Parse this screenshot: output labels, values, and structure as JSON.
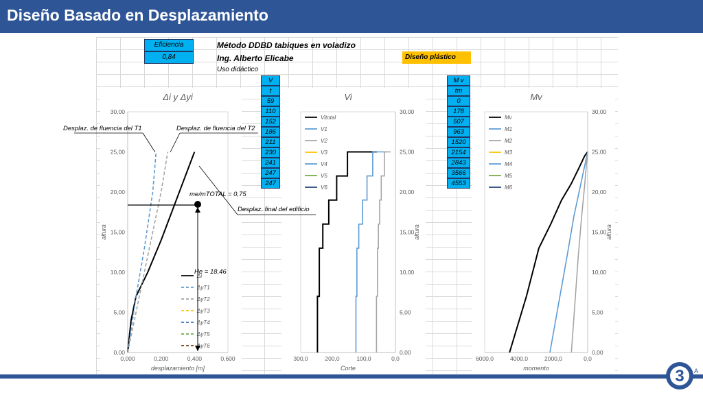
{
  "header": {
    "title": "Diseño Basado en Desplazamiento"
  },
  "sheet": {
    "eficiencia_label": "Eficiencia",
    "eficiencia_value": "0,84",
    "title": "Método DDBD tabiques en voladizo",
    "author": "Ing. Alberto Elicabe",
    "note": "Uso didáctico",
    "design_label": "Diseño plástico",
    "v_table": {
      "header": "V ltotal",
      "unit": "t",
      "values": [
        "59",
        "110",
        "152",
        "186",
        "211",
        "230",
        "241",
        "247",
        "247"
      ]
    },
    "m_table": {
      "header": "M v",
      "unit": "tm",
      "values": [
        "0",
        "178",
        "507",
        "963",
        "1520",
        "2154",
        "2843",
        "3566",
        "4553"
      ]
    }
  },
  "annotations": {
    "fluencia_t1": "Desplaz. de fluencia del T1",
    "fluencia_t2": "Desplaz. de fluencia del T2",
    "me_ratio": "me/mTOTAL = 0,75",
    "final": "Desplaz. final del edificio",
    "he": "He = 18,46"
  },
  "colors": {
    "header": "#2e5596",
    "accent_blue": "#00b0f0",
    "accent_orange": "#ffc000",
    "s1": "#000000",
    "s2": "#5b9bd5",
    "s3": "#a5a5a5",
    "s4": "#ffc000",
    "s5": "#4472c4",
    "s6": "#70ad47",
    "s7": "#264478"
  },
  "chart_data": [
    {
      "type": "line",
      "title": "Δi y Δyi",
      "xlabel": "desplazamiento [m]",
      "ylabel": "altura",
      "xlim": [
        0,
        0.6
      ],
      "ylim": [
        0,
        30
      ],
      "xticks": [
        "0,000",
        "0,200",
        "0,400",
        "0,600"
      ],
      "yticks": [
        "0,00",
        "5,00",
        "10,00",
        "15,00",
        "20,00",
        "25,00",
        "30,00"
      ],
      "legend": "bottom-right",
      "series": [
        {
          "name": "Δi",
          "style": "solid",
          "color": "#000000",
          "points": [
            [
              0,
              0
            ],
            [
              0.02,
              4
            ],
            [
              0.05,
              7
            ],
            [
              0.12,
              10
            ],
            [
              0.2,
              14
            ],
            [
              0.3,
              19.5
            ],
            [
              0.4,
              25
            ]
          ]
        },
        {
          "name": "ΔyT1",
          "style": "dashed",
          "color": "#5b9bd5",
          "points": [
            [
              0,
              0
            ],
            [
              0.05,
              7
            ],
            [
              0.1,
              13
            ],
            [
              0.15,
              20
            ],
            [
              0.17,
              25
            ]
          ]
        },
        {
          "name": "ΔyT2",
          "style": "dashed",
          "color": "#a5a5a5",
          "points": [
            [
              0,
              0
            ],
            [
              0.07,
              7
            ],
            [
              0.13,
              13
            ],
            [
              0.2,
              20
            ],
            [
              0.24,
              25
            ]
          ]
        },
        {
          "name": "ΔyT3",
          "style": "dashed",
          "color": "#ffc000",
          "points": []
        },
        {
          "name": "ΔyT4",
          "style": "dashed",
          "color": "#4472c4",
          "points": []
        },
        {
          "name": "ΔyT5",
          "style": "dashed",
          "color": "#70ad47",
          "points": []
        },
        {
          "name": "ΔyT6",
          "style": "dashed",
          "color": "#843c0c",
          "points": []
        }
      ]
    },
    {
      "type": "line",
      "title": "Vi",
      "xlabel": "Corte",
      "ylabel": "altura",
      "xlim": [
        300,
        0
      ],
      "ylim": [
        0,
        30
      ],
      "xticks": [
        "300,0",
        "200,0",
        "100,0",
        "0,0"
      ],
      "yticks": [
        "0,00",
        "5,00",
        "10,00",
        "15,00",
        "20,00",
        "25,00",
        "30,00"
      ],
      "legend": "top-left",
      "series": [
        {
          "name": "Vitotal",
          "color": "#000000",
          "points": [
            [
              247,
              0
            ],
            [
              247,
              7
            ],
            [
              241,
              7
            ],
            [
              241,
              13
            ],
            [
              230,
              13
            ],
            [
              230,
              16
            ],
            [
              211,
              16
            ],
            [
              211,
              19
            ],
            [
              186,
              19
            ],
            [
              186,
              22
            ],
            [
              152,
              22
            ],
            [
              152,
              25
            ],
            [
              110,
              25
            ],
            [
              59,
              25
            ]
          ]
        },
        {
          "name": "V1",
          "color": "#5b9bd5",
          "points": [
            [
              125,
              0
            ],
            [
              125,
              7
            ],
            [
              122,
              7
            ],
            [
              122,
              13
            ],
            [
              116,
              13
            ],
            [
              116,
              16
            ],
            [
              104,
              16
            ],
            [
              104,
              19
            ],
            [
              90,
              19
            ],
            [
              90,
              22
            ],
            [
              72,
              22
            ],
            [
              72,
              25
            ],
            [
              52,
              25
            ],
            [
              28,
              25
            ]
          ]
        },
        {
          "name": "V2",
          "color": "#a5a5a5",
          "points": [
            [
              60,
              0
            ],
            [
              60,
              7
            ],
            [
              57,
              7
            ],
            [
              57,
              13
            ],
            [
              54,
              13
            ],
            [
              54,
              16
            ],
            [
              50,
              16
            ],
            [
              50,
              19
            ],
            [
              45,
              19
            ],
            [
              45,
              22
            ],
            [
              35,
              22
            ],
            [
              35,
              25
            ],
            [
              25,
              25
            ],
            [
              15,
              25
            ]
          ]
        },
        {
          "name": "V3",
          "color": "#ffc000",
          "points": []
        },
        {
          "name": "V4",
          "color": "#5b9bd5",
          "points": []
        },
        {
          "name": "V5",
          "color": "#70ad47",
          "points": []
        },
        {
          "name": "V6",
          "color": "#264478",
          "points": []
        }
      ]
    },
    {
      "type": "line",
      "title": "Mv",
      "xlabel": "momento",
      "ylabel": "altura",
      "xlim": [
        6000,
        0
      ],
      "ylim": [
        0,
        30
      ],
      "xticks": [
        "6000,0",
        "4000,0",
        "2000,0",
        "0,0"
      ],
      "yticks": [
        "0,00",
        "5,00",
        "10,00",
        "15,00",
        "20,00",
        "25,00",
        "30,00"
      ],
      "legend": "top-left",
      "series": [
        {
          "name": "Mv",
          "color": "#000000",
          "points": [
            [
              4553,
              0
            ],
            [
              3566,
              7
            ],
            [
              2843,
              13
            ],
            [
              2154,
              16
            ],
            [
              1520,
              19
            ],
            [
              963,
              21
            ],
            [
              507,
              23
            ],
            [
              178,
              24.5
            ],
            [
              0,
              25
            ]
          ]
        },
        {
          "name": "M1",
          "color": "#5b9bd5",
          "points": [
            [
              2200,
              0
            ],
            [
              1700,
              6
            ],
            [
              1200,
              12
            ],
            [
              800,
              17
            ],
            [
              400,
              21
            ],
            [
              100,
              24
            ],
            [
              0,
              25
            ]
          ]
        },
        {
          "name": "M2",
          "color": "#a5a5a5",
          "points": [
            [
              950,
              0
            ],
            [
              750,
              6
            ],
            [
              550,
              12
            ],
            [
              350,
              17
            ],
            [
              170,
              21
            ],
            [
              50,
              24
            ],
            [
              0,
              25
            ]
          ]
        },
        {
          "name": "M3",
          "color": "#ffc000",
          "points": []
        },
        {
          "name": "M4",
          "color": "#5b9bd5",
          "points": []
        },
        {
          "name": "M5",
          "color": "#70ad47",
          "points": []
        },
        {
          "name": "M6",
          "color": "#264478",
          "points": []
        }
      ]
    }
  ]
}
